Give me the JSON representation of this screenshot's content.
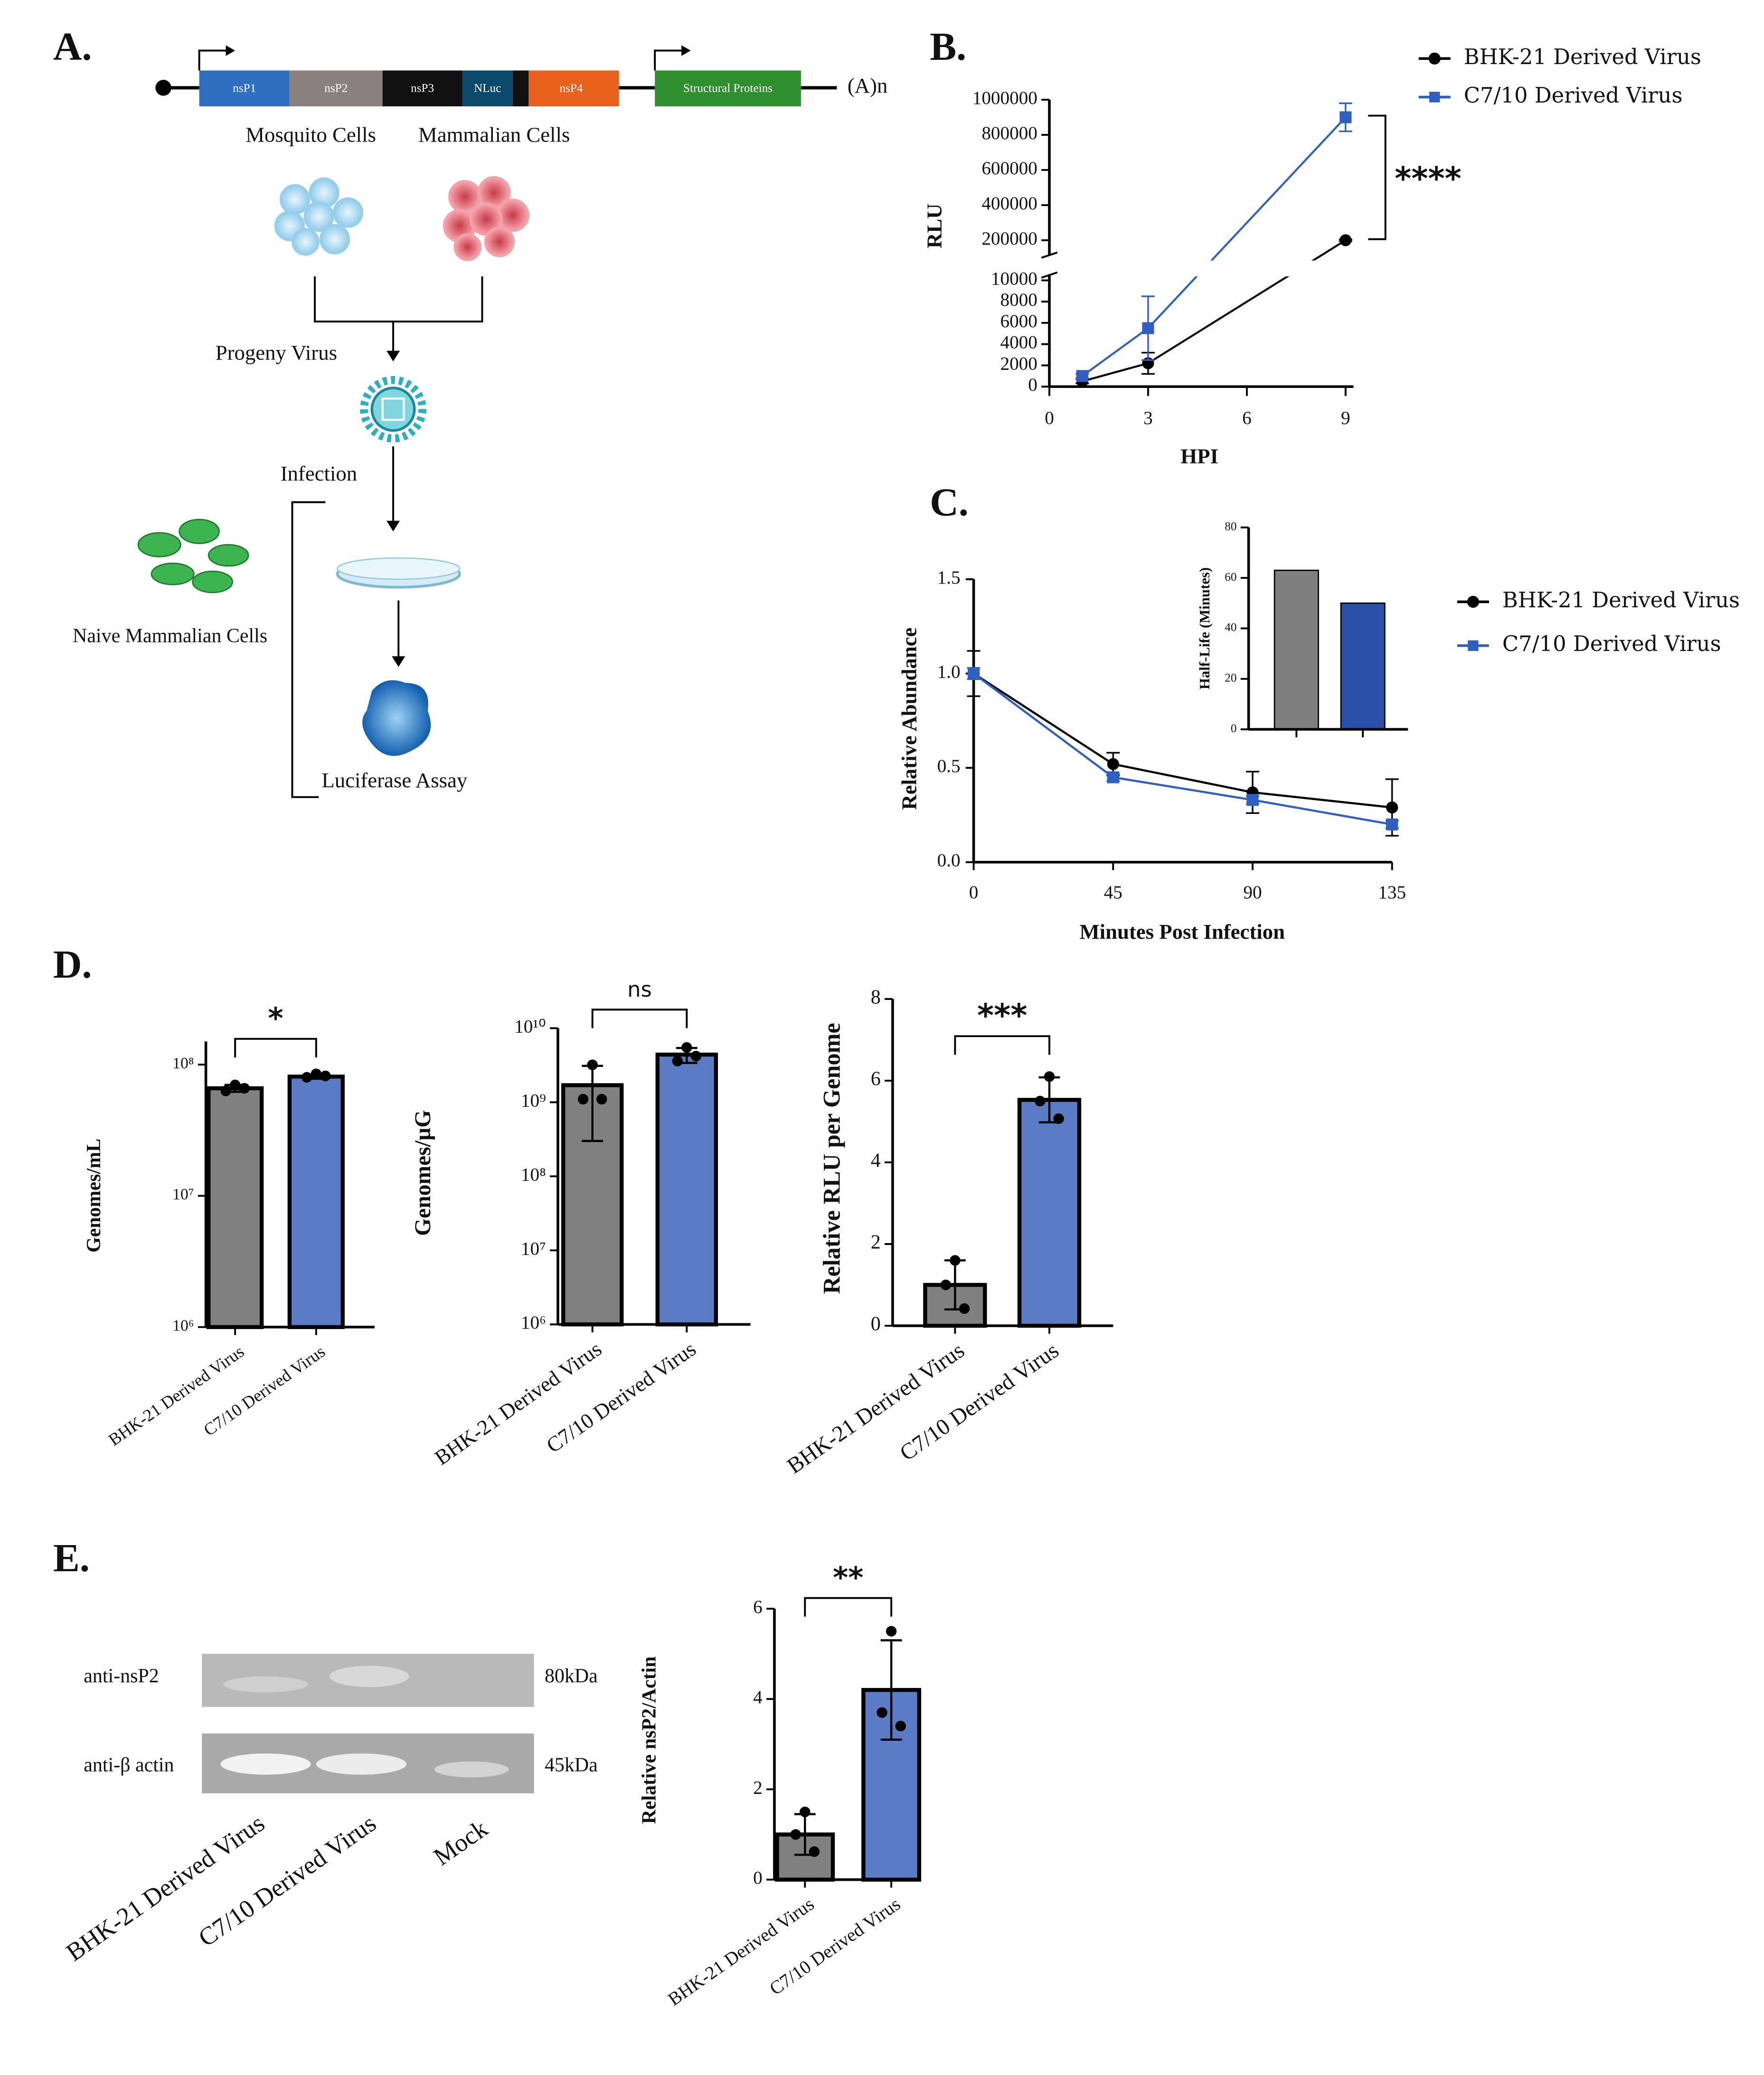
{
  "panel_labels": [
    "A.",
    "B.",
    "C.",
    "D.",
    "E."
  ],
  "diagram": {
    "genes": [
      "nsP1",
      "nsP2",
      "nsP3",
      "NLuc",
      "nsP4"
    ],
    "structural": "Structural Proteins",
    "polyA": "(A)n",
    "mosquito": "Mosquito Cells",
    "mammalian": "Mammalian Cells",
    "progeny": "Progeny Virus",
    "infection": "Infection",
    "naive": "Naive Mammalian Cells",
    "assay": "Luciferase Assay"
  },
  "blot": {
    "rows": [
      "anti-nsP2",
      "anti-β actin"
    ],
    "sizes": [
      "80kDa",
      "45kDa"
    ],
    "lanes": [
      "BHK-21 Derived Virus",
      "C7/10 Derived Virus",
      "Mock"
    ]
  },
  "chart_data": [
    {
      "type": "line",
      "x_label": "HPI",
      "y_label": "RLU",
      "x": [
        1,
        3,
        9
      ],
      "xlim": [
        0,
        9
      ],
      "xticks": [
        0,
        3,
        6,
        9
      ],
      "ylim": [
        [
          0,
          10000
        ],
        [
          100000,
          1000000
        ]
      ],
      "yticks": [
        [
          0,
          2000,
          4000,
          6000,
          8000,
          10000
        ],
        [
          200000,
          400000,
          600000,
          800000,
          1000000
        ]
      ],
      "axis_break": true,
      "series": [
        {
          "name": "BHK-21 Derived Virus",
          "color": "#000000",
          "marker": "circle",
          "values": [
            500,
            2200,
            200000
          ],
          "errors": [
            200,
            1000,
            5000
          ]
        },
        {
          "name": "C7/10  Derived Virus",
          "color": "#2f5fbf",
          "marker": "square",
          "values": [
            1000,
            5500,
            900000
          ],
          "errors": [
            200,
            3000,
            80000
          ]
        }
      ],
      "annotation": "****"
    },
    {
      "type": "line",
      "x_label": "Minutes Post Infection",
      "y_label": "Relative Abundance",
      "x": [
        0,
        45,
        90,
        135
      ],
      "xlim": [
        0,
        135
      ],
      "xticks": [
        0,
        45,
        90,
        135
      ],
      "ylim": [
        0,
        1.5
      ],
      "yticks": [
        {
          "value": 0,
          "label": "0.0"
        },
        {
          "value": 0.5,
          "label": "0.5"
        },
        {
          "value": 1,
          "label": "1.0"
        },
        {
          "value": 1.5,
          "label": "1.5"
        }
      ],
      "series": [
        {
          "name": "BHK-21 Derived Virus",
          "color": "#000000",
          "marker": "circle",
          "values": [
            1.0,
            0.52,
            0.37,
            0.29
          ],
          "errors": [
            0.12,
            0.06,
            0.11,
            0.15
          ]
        },
        {
          "name": "C7/10 Derived Virus",
          "color": "#2f5fbf",
          "marker": "square",
          "values": [
            1.0,
            0.45,
            0.33,
            0.2
          ],
          "errors": [
            0.03,
            0.02,
            0.02,
            0.02
          ]
        }
      ]
    },
    {
      "type": "bar",
      "y_label": "Half-Life (Minutes)",
      "categories": [
        null,
        null
      ],
      "values": [
        63,
        50
      ],
      "colors": [
        "#7f7f7f",
        "#2a4fa8"
      ],
      "ylim": [
        0,
        80
      ],
      "yticks": [
        0,
        20,
        40,
        60,
        80
      ]
    },
    {
      "type": "bar",
      "y_label": "Genomes/mL",
      "categories": [
        "BHK-21 Derived Virus",
        "C7/10 Derived Virus"
      ],
      "values": [
        66000000,
        81000000
      ],
      "errors": [
        4000000,
        3000000
      ],
      "points": [
        [
          70000000,
          63000000,
          66000000
        ],
        [
          85000000,
          80000000,
          82000000
        ]
      ],
      "colors": [
        "#808080",
        "#5b7bc4"
      ],
      "log_scale": true,
      "ylim": [
        1000000,
        150000000
      ],
      "yticks": [
        {
          "value": 1000000,
          "label": "10⁶"
        },
        {
          "value": 10000000,
          "label": "10⁷"
        },
        {
          "value": 100000000,
          "label": "10⁸"
        }
      ],
      "significance": "*"
    },
    {
      "type": "bar",
      "y_label": "Genomes/µG",
      "categories": [
        "BHK-21 Derived Virus",
        "C7/10 Derived Virus"
      ],
      "values": [
        1700000000,
        4400000000
      ],
      "errors": [
        1400000000,
        1000000000
      ],
      "points": [
        [
          3200000000,
          1100000000,
          1100000000
        ],
        [
          5500000000,
          3600000000,
          4200000000
        ]
      ],
      "colors": [
        "#808080",
        "#5b7bc4"
      ],
      "log_scale": true,
      "ylim": [
        1000000,
        10000000000
      ],
      "yticks": [
        {
          "value": 1000000,
          "label": "10⁶"
        },
        {
          "value": 10000000,
          "label": "10⁷"
        },
        {
          "value": 100000000,
          "label": "10⁸"
        },
        {
          "value": 1000000000,
          "label": "10⁹"
        },
        {
          "value": 10000000000,
          "label": "10¹⁰"
        }
      ],
      "significance": "ns"
    },
    {
      "type": "bar",
      "y_label": "Relative RLU per Genome",
      "categories": [
        "BHK-21 Derived Virus",
        "C7/10 Derived Virus"
      ],
      "values": [
        1.0,
        5.53
      ],
      "errors": [
        0.6,
        0.55
      ],
      "points": [
        [
          1.6,
          1.0,
          0.42
        ],
        [
          6.1,
          5.5,
          5.07
        ]
      ],
      "colors": [
        "#808080",
        "#5b7bc4"
      ],
      "ylim": [
        0,
        8
      ],
      "yticks": [
        0,
        2,
        4,
        6,
        8
      ],
      "significance": "***"
    },
    {
      "type": "bar",
      "y_label": "Relative nsP2/Actin",
      "categories": [
        "BHK-21 Derived Virus",
        "C7/10 Derived Virus"
      ],
      "values": [
        1.0,
        4.2
      ],
      "errors": [
        0.45,
        1.1
      ],
      "points": [
        [
          1.5,
          1.0,
          0.62
        ],
        [
          5.5,
          3.7,
          3.4
        ]
      ],
      "colors": [
        "#808080",
        "#5b7bc4"
      ],
      "ylim": [
        0,
        6
      ],
      "yticks": [
        0,
        2,
        4,
        6
      ],
      "significance": "**"
    }
  ]
}
